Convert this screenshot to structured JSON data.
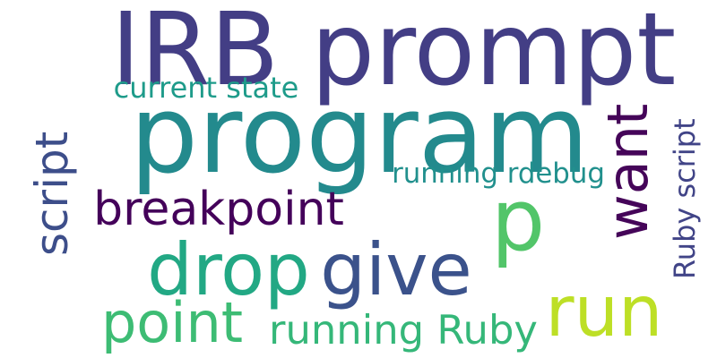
{
  "words": [
    {
      "key": "irb-prompt",
      "text": "IRB prompt",
      "color": "#433e85",
      "rotated": false
    },
    {
      "key": "program",
      "text": "program",
      "color": "#238a8d",
      "rotated": false
    },
    {
      "key": "p",
      "text": "p",
      "color": "#52c569",
      "rotated": false
    },
    {
      "key": "want",
      "text": "want",
      "color": "#450559",
      "rotated": true
    },
    {
      "key": "script",
      "text": "script",
      "color": "#3d4e8a",
      "rotated": true
    },
    {
      "key": "current-state",
      "text": "current state",
      "color": "#1e9b8a",
      "rotated": false
    },
    {
      "key": "breakpoint",
      "text": "breakpoint",
      "color": "#44015a",
      "rotated": false
    },
    {
      "key": "running-rdebug",
      "text": "running rdebug",
      "color": "#21908d",
      "rotated": false
    },
    {
      "key": "ruby-script",
      "text": "Ruby script",
      "color": "#414487",
      "rotated": true
    },
    {
      "key": "drop",
      "text": "drop",
      "color": "#22a884",
      "rotated": false
    },
    {
      "key": "give",
      "text": "give",
      "color": "#3b528b",
      "rotated": false
    },
    {
      "key": "run",
      "text": "run",
      "color": "#bddf26",
      "rotated": false
    },
    {
      "key": "point",
      "text": "point",
      "color": "#3dbc74",
      "rotated": false
    },
    {
      "key": "running-ruby",
      "text": "running Ruby",
      "color": "#35b779",
      "rotated": false
    }
  ]
}
